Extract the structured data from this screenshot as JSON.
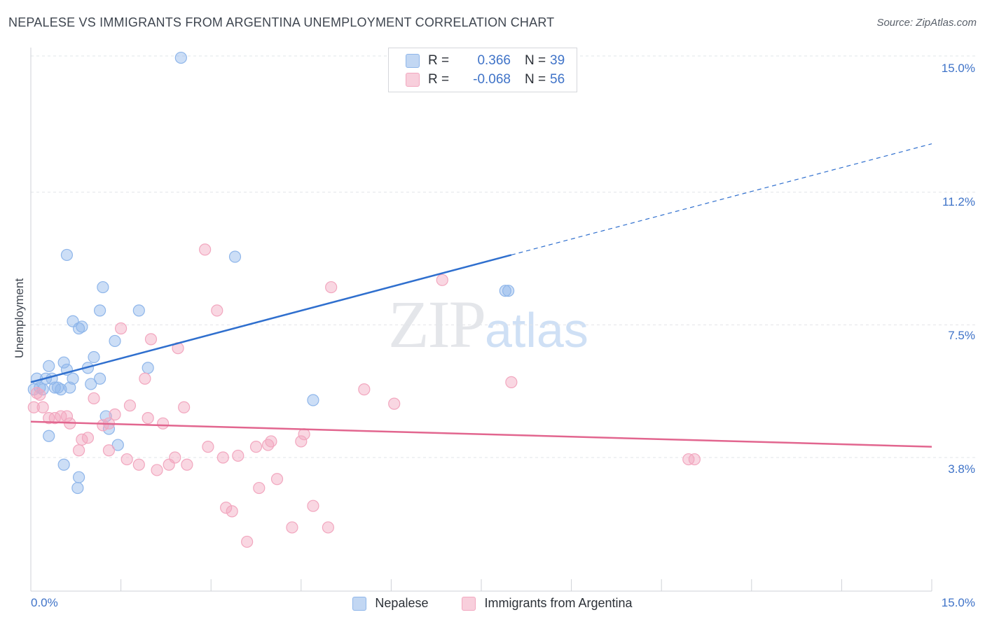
{
  "header": {
    "title": "NEPALESE VS IMMIGRANTS FROM ARGENTINA UNEMPLOYMENT CORRELATION CHART",
    "source": "Source: ZipAtlas.com"
  },
  "watermark": {
    "zip": "ZIP",
    "atlas": "atlas"
  },
  "stats": {
    "r_label": "R =",
    "n_label": "N =",
    "rows": [
      {
        "r": "0.366",
        "n": "39",
        "color": "#8fb6ea"
      },
      {
        "r": "-0.068",
        "n": "56",
        "color": "#f2a7bf"
      }
    ]
  },
  "legend": [
    {
      "label": "Nepalese",
      "color": "#8fb6ea"
    },
    {
      "label": "Immigrants from Argentina",
      "color": "#f2a7bf"
    }
  ],
  "chart_data": {
    "type": "scatter",
    "title": "NEPALESE VS IMMIGRANTS FROM ARGENTINA UNEMPLOYMENT CORRELATION CHART",
    "xlabel": "",
    "ylabel": "Unemployment",
    "xlim": [
      0,
      15
    ],
    "ylim": [
      0,
      15
    ],
    "x_ticks": [
      "0.0%",
      "15.0%"
    ],
    "y_ticks": [
      {
        "value": 3.8,
        "label": "3.8%"
      },
      {
        "value": 7.5,
        "label": "7.5%"
      },
      {
        "value": 11.2,
        "label": "11.2%"
      },
      {
        "value": 15.0,
        "label": "15.0%"
      }
    ],
    "grid": true,
    "series": [
      {
        "name": "Nepalese",
        "color": "#8fb6ea",
        "line_color": "#2f6fce",
        "trend": {
          "x_start": 0,
          "y_start": 5.9,
          "x_solid_end": 8.0,
          "y_solid_end": 9.45,
          "x_end": 15.0,
          "y_end": 12.55
        },
        "points": [
          [
            0.05,
            5.7
          ],
          [
            0.1,
            6.0
          ],
          [
            0.15,
            5.75
          ],
          [
            0.2,
            5.7
          ],
          [
            0.25,
            6.0
          ],
          [
            0.3,
            6.35
          ],
          [
            0.35,
            6.0
          ],
          [
            0.4,
            5.75
          ],
          [
            0.45,
            5.75
          ],
          [
            0.5,
            5.7
          ],
          [
            0.55,
            6.45
          ],
          [
            0.6,
            6.25
          ],
          [
            0.65,
            5.75
          ],
          [
            0.7,
            6.0
          ],
          [
            0.3,
            4.4
          ],
          [
            0.55,
            3.6
          ],
          [
            0.8,
            3.25
          ],
          [
            0.78,
            2.95
          ],
          [
            0.6,
            9.45
          ],
          [
            0.7,
            7.6
          ],
          [
            0.8,
            7.4
          ],
          [
            0.85,
            7.45
          ],
          [
            0.95,
            6.3
          ],
          [
            1.0,
            5.85
          ],
          [
            1.05,
            6.6
          ],
          [
            1.15,
            6.0
          ],
          [
            1.15,
            7.9
          ],
          [
            1.2,
            8.55
          ],
          [
            1.25,
            4.95
          ],
          [
            1.3,
            4.6
          ],
          [
            1.45,
            4.15
          ],
          [
            1.4,
            7.05
          ],
          [
            1.8,
            7.9
          ],
          [
            1.95,
            6.3
          ],
          [
            2.5,
            14.95
          ],
          [
            3.4,
            9.4
          ],
          [
            4.7,
            5.4
          ],
          [
            7.9,
            8.45
          ],
          [
            7.95,
            8.45
          ]
        ]
      },
      {
        "name": "Immigrants from Argentina",
        "color": "#f2a7bf",
        "line_color": "#e2668f",
        "trend": {
          "x_start": 0,
          "y_start": 4.8,
          "x_end": 15.0,
          "y_end": 4.1
        },
        "points": [
          [
            0.05,
            5.2
          ],
          [
            0.1,
            5.6
          ],
          [
            0.15,
            5.55
          ],
          [
            0.2,
            5.2
          ],
          [
            0.3,
            4.9
          ],
          [
            0.4,
            4.9
          ],
          [
            0.5,
            4.95
          ],
          [
            0.6,
            4.95
          ],
          [
            0.65,
            4.75
          ],
          [
            0.8,
            4.0
          ],
          [
            0.85,
            4.3
          ],
          [
            0.95,
            4.35
          ],
          [
            1.05,
            5.45
          ],
          [
            1.2,
            4.7
          ],
          [
            1.3,
            4.75
          ],
          [
            1.3,
            4.0
          ],
          [
            1.4,
            5.0
          ],
          [
            1.5,
            7.4
          ],
          [
            1.6,
            3.75
          ],
          [
            1.65,
            5.25
          ],
          [
            1.8,
            3.6
          ],
          [
            1.9,
            6.0
          ],
          [
            1.95,
            4.9
          ],
          [
            2.0,
            7.1
          ],
          [
            2.1,
            3.45
          ],
          [
            2.2,
            4.75
          ],
          [
            2.3,
            3.6
          ],
          [
            2.4,
            3.8
          ],
          [
            2.45,
            6.85
          ],
          [
            2.55,
            5.2
          ],
          [
            2.6,
            3.6
          ],
          [
            2.9,
            9.6
          ],
          [
            2.95,
            4.1
          ],
          [
            3.1,
            7.9
          ],
          [
            3.2,
            3.8
          ],
          [
            3.25,
            2.4
          ],
          [
            3.35,
            2.3
          ],
          [
            3.45,
            3.85
          ],
          [
            3.6,
            1.45
          ],
          [
            3.75,
            4.1
          ],
          [
            3.8,
            2.95
          ],
          [
            3.95,
            4.15
          ],
          [
            4.0,
            4.25
          ],
          [
            4.1,
            3.2
          ],
          [
            4.35,
            1.85
          ],
          [
            4.5,
            4.25
          ],
          [
            4.55,
            4.45
          ],
          [
            4.7,
            2.45
          ],
          [
            4.95,
            1.85
          ],
          [
            5.0,
            8.55
          ],
          [
            5.55,
            5.7
          ],
          [
            6.05,
            5.3
          ],
          [
            6.85,
            8.75
          ],
          [
            8.0,
            5.9
          ],
          [
            10.95,
            3.75
          ],
          [
            11.05,
            3.75
          ]
        ]
      }
    ]
  }
}
